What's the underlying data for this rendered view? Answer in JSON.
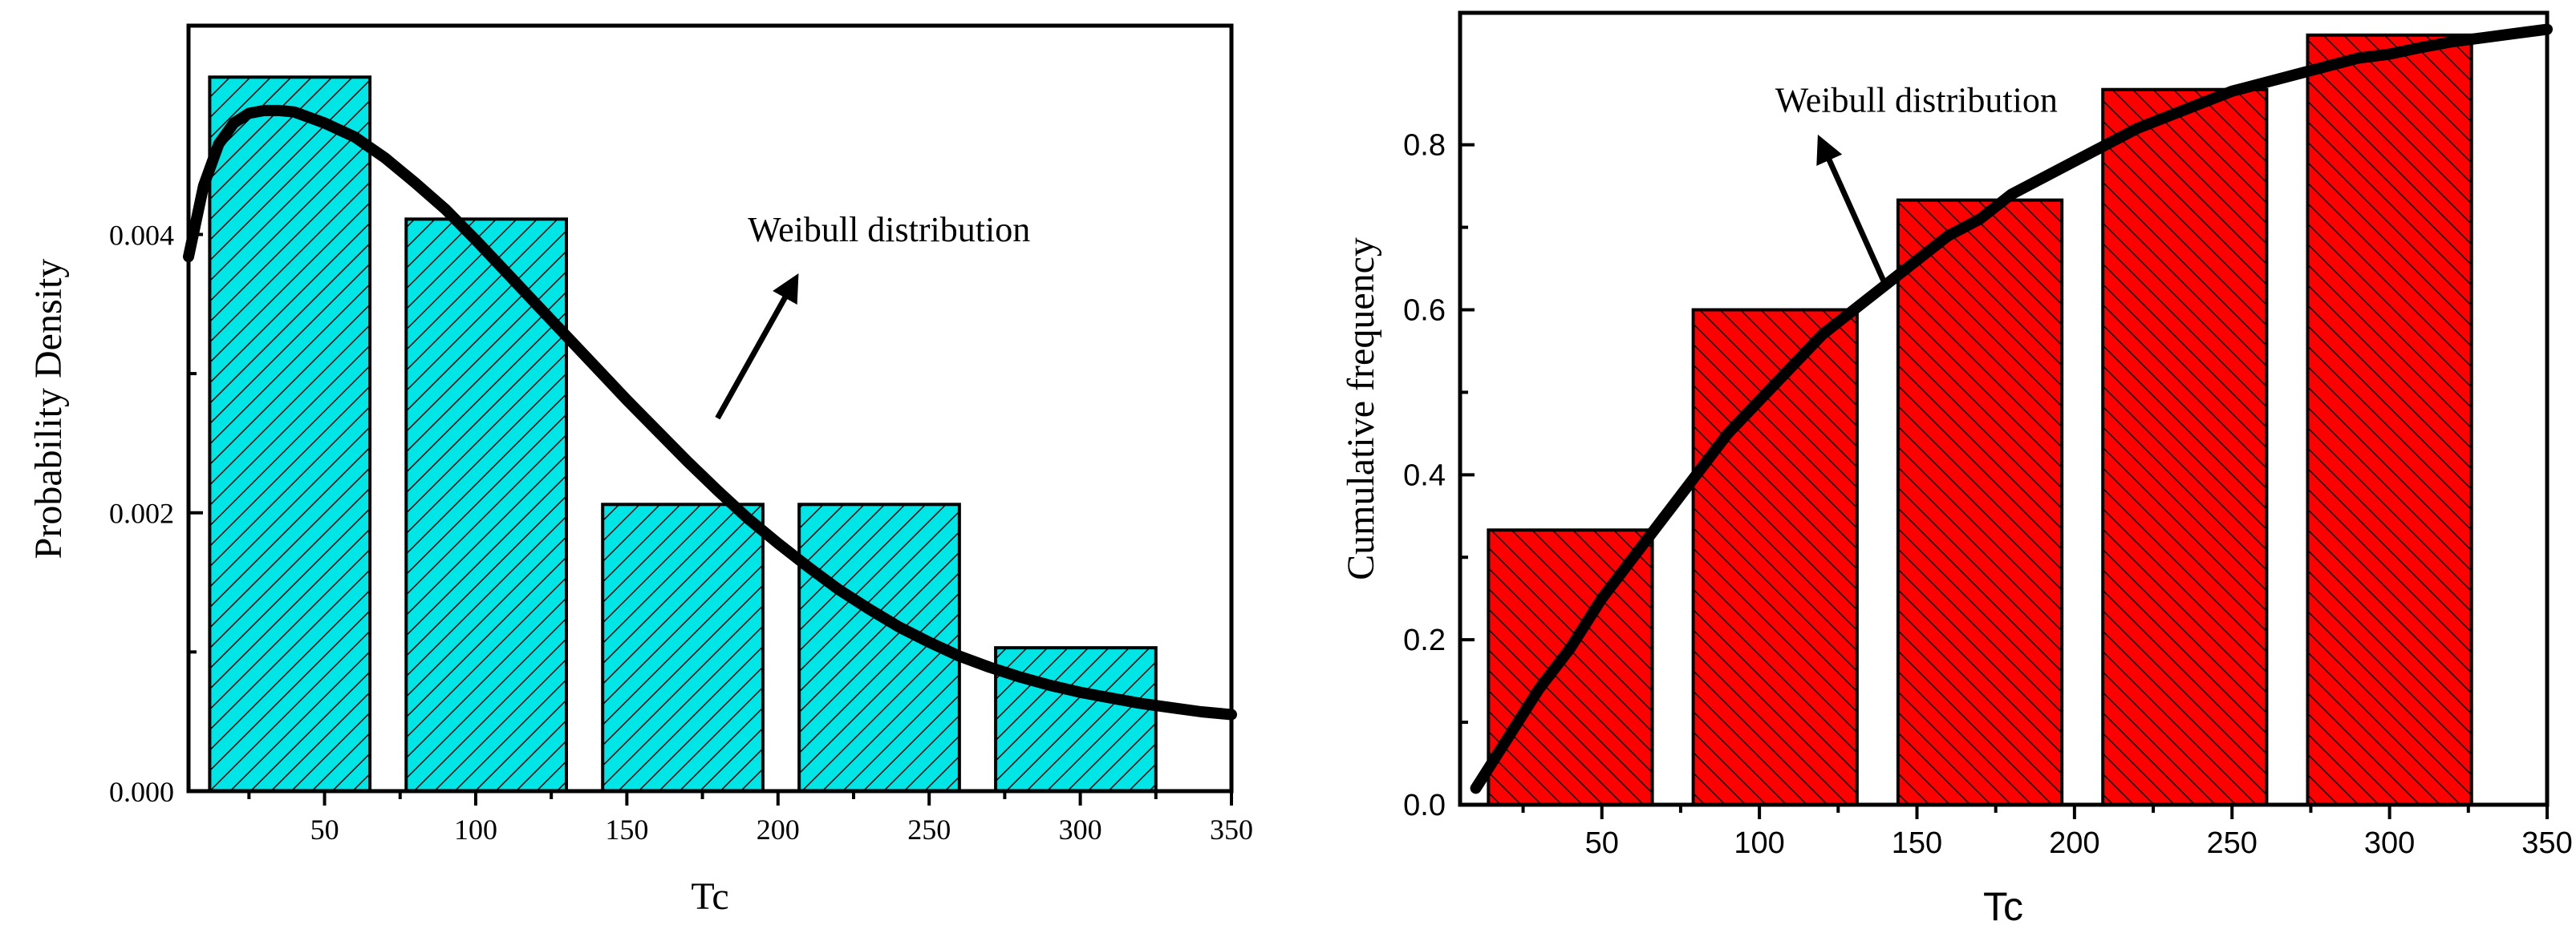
{
  "colors": {
    "left_bar_fill": "#00E5E5",
    "right_bar_fill": "#FF0000",
    "hatch": "#000000"
  },
  "chart_data": [
    {
      "type": "bar",
      "title": "",
      "xlabel": "Tc",
      "ylabel": "Probability Density",
      "xlim": [
        5,
        350
      ],
      "ylim": [
        0,
        0.0055
      ],
      "x_ticks": [
        50,
        100,
        150,
        200,
        250,
        300,
        350
      ],
      "x_tick_labels": [
        "50",
        "100",
        "150",
        "200",
        "250",
        "300",
        "350"
      ],
      "y_ticks": [
        0,
        0.002,
        0.004
      ],
      "y_tick_labels": [
        "0.000",
        "0.002",
        "0.004"
      ],
      "bars": [
        {
          "x0": 12,
          "x1": 65,
          "value": 0.00513
        },
        {
          "x0": 77,
          "x1": 130,
          "value": 0.00411
        },
        {
          "x0": 142,
          "x1": 195,
          "value": 0.00206
        },
        {
          "x0": 207,
          "x1": 260,
          "value": 0.00206
        },
        {
          "x0": 272,
          "x1": 325,
          "value": 0.00103
        }
      ],
      "series": [
        {
          "name": "Weibull distribution",
          "x": [
            5,
            10,
            15,
            20,
            25,
            30,
            35,
            40,
            45,
            50,
            60,
            70,
            80,
            90,
            100,
            110,
            120,
            130,
            140,
            150,
            160,
            170,
            180,
            190,
            200,
            210,
            220,
            230,
            240,
            250,
            260,
            270,
            280,
            290,
            300,
            310,
            320,
            330,
            340,
            350
          ],
          "y": [
            0.00384,
            0.00435,
            0.00465,
            0.0048,
            0.00487,
            0.00489,
            0.00489,
            0.00488,
            0.00484,
            0.0048,
            0.0047,
            0.00455,
            0.00437,
            0.00418,
            0.00396,
            0.00373,
            0.0035,
            0.00327,
            0.00304,
            0.00281,
            0.00259,
            0.00237,
            0.00216,
            0.00196,
            0.00178,
            0.00161,
            0.00145,
            0.00131,
            0.00118,
            0.00107,
            0.00097,
            0.00089,
            0.00082,
            0.00076,
            0.00071,
            0.00067,
            0.00063,
            0.0006,
            0.00057,
            0.00055
          ]
        }
      ],
      "annotation": {
        "text": "Weibull distribution",
        "x": 190,
        "y": 0.00395,
        "arrow_from": [
          180,
          0.00268
        ],
        "arrow_to": [
          205,
          0.00365
        ]
      }
    },
    {
      "type": "bar",
      "title": "",
      "xlabel": "Tc",
      "ylabel": "Cumulative frequency",
      "xlim": [
        5,
        350
      ],
      "ylim": [
        0,
        0.96
      ],
      "x_ticks": [
        50,
        100,
        150,
        200,
        250,
        300,
        350
      ],
      "x_tick_labels": [
        "50",
        "100",
        "150",
        "200",
        "250",
        "300",
        "350"
      ],
      "y_ticks": [
        0,
        0.2,
        0.4,
        0.6,
        0.8
      ],
      "y_tick_labels": [
        "0.0",
        "0.2",
        "0.4",
        "0.6",
        "0.8"
      ],
      "bars": [
        {
          "x0": 14,
          "x1": 66,
          "value": 0.333
        },
        {
          "x0": 79,
          "x1": 131,
          "value": 0.6
        },
        {
          "x0": 144,
          "x1": 196,
          "value": 0.733
        },
        {
          "x0": 209,
          "x1": 261,
          "value": 0.867
        },
        {
          "x0": 274,
          "x1": 326,
          "value": 0.933
        }
      ],
      "series": [
        {
          "name": "Weibull distribution",
          "x": [
            10,
            20,
            30,
            40,
            50,
            60,
            70,
            80,
            90,
            100,
            110,
            120,
            130,
            140,
            150,
            160,
            170,
            180,
            190,
            200,
            210,
            220,
            230,
            240,
            250,
            260,
            270,
            280,
            290,
            300,
            310,
            320,
            330,
            340,
            350
          ],
          "y": [
            0.02,
            0.08,
            0.14,
            0.19,
            0.25,
            0.3,
            0.35,
            0.4,
            0.45,
            0.49,
            0.53,
            0.57,
            0.6,
            0.63,
            0.66,
            0.69,
            0.71,
            0.74,
            0.76,
            0.78,
            0.8,
            0.82,
            0.835,
            0.85,
            0.865,
            0.875,
            0.885,
            0.895,
            0.905,
            0.91,
            0.918,
            0.925,
            0.93,
            0.935,
            0.94
          ]
        }
      ],
      "annotation": {
        "text": "Weibull distribution",
        "x": 105,
        "y": 0.84,
        "arrow_from": [
          140,
          0.63
        ],
        "arrow_to": [
          120,
          0.8
        ]
      }
    }
  ]
}
